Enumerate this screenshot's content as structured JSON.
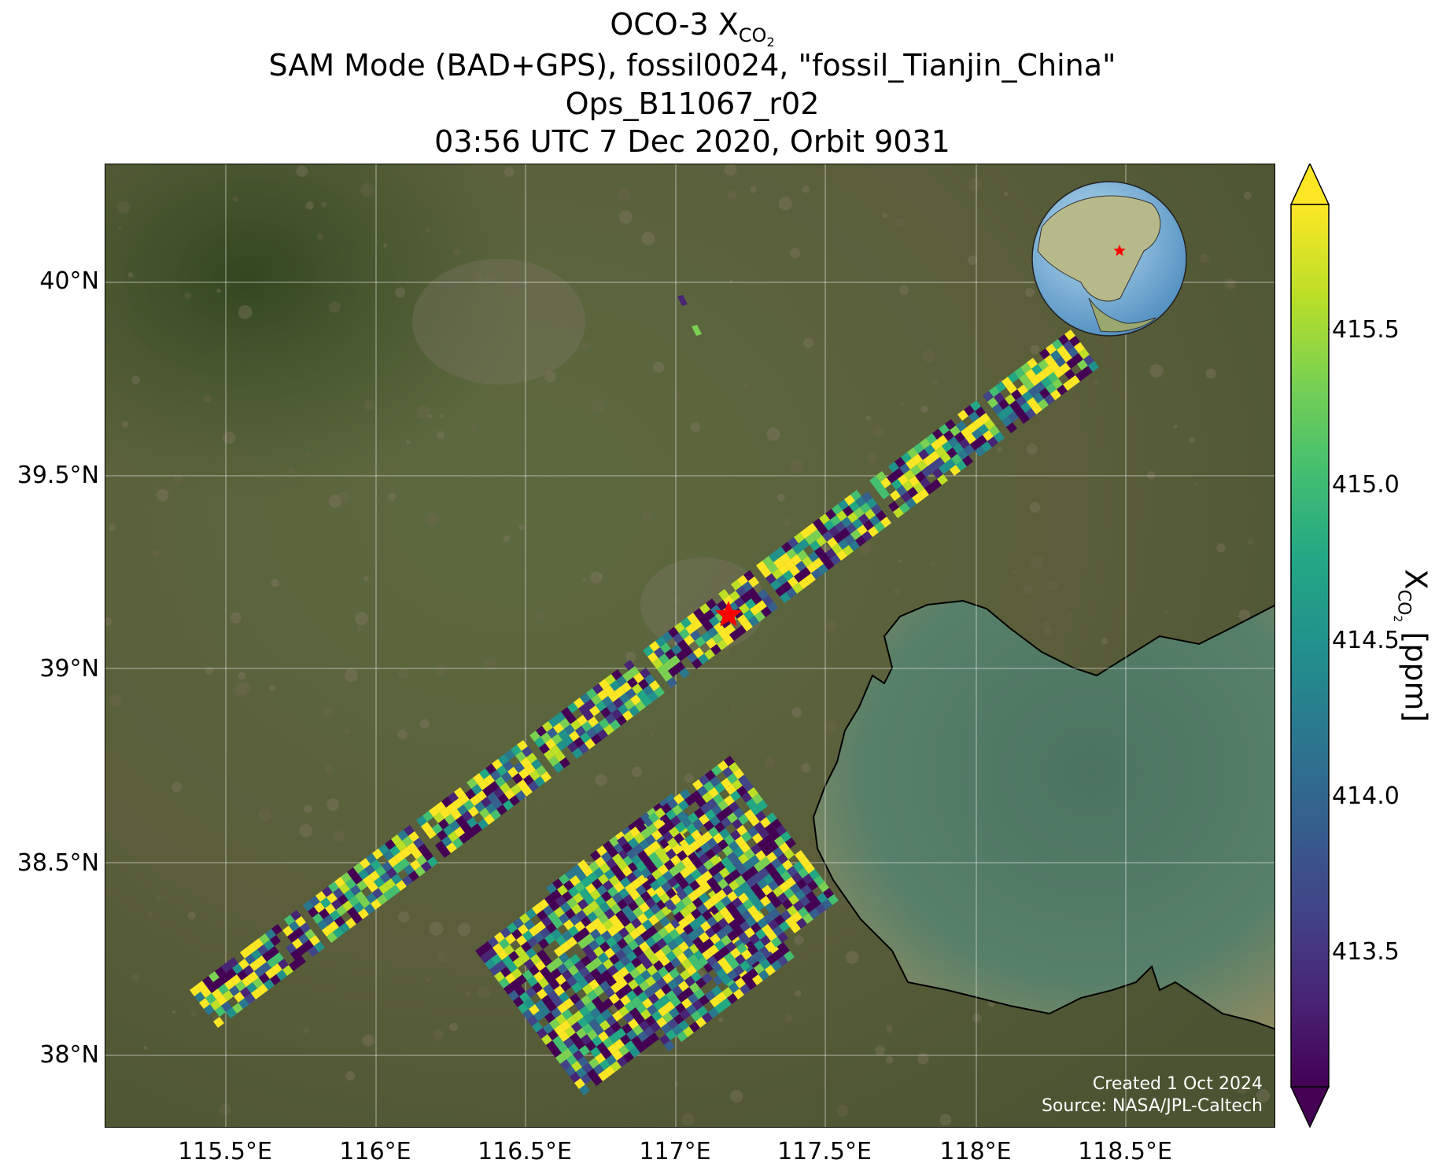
{
  "title": {
    "line1_main": "OCO-3 X",
    "line1_sub": "CO",
    "line1_sub2": "2",
    "line2": "SAM Mode (BAD+GPS), fossil0024, \"fossil_Tianjin_China\"",
    "line3": "Ops_B11067_r02",
    "line4": "03:56 UTC 7 Dec 2020, Orbit 9031"
  },
  "axes": {
    "lon_ticks": [
      "115.5°E",
      "116°E",
      "116.5°E",
      "117°E",
      "117.5°E",
      "118°E",
      "118.5°E"
    ],
    "lat_ticks": [
      "40°N",
      "39.5°N",
      "39°N",
      "38.5°N",
      "38°N"
    ]
  },
  "colorbar": {
    "label_main": "X",
    "label_sub": "CO",
    "label_sub2": "2",
    "label_unit": " [ppm]",
    "ticks": [
      "415.5",
      "415.0",
      "414.5",
      "414.0",
      "413.5"
    ],
    "extend": "both",
    "colormap": "viridis"
  },
  "credits": {
    "created": "Created 1 Oct 2024",
    "source": "Source: NASA/JPL-Caltech"
  },
  "target_marker": {
    "label": "fossil_Tianjin_China",
    "color": "#ff0000",
    "icon": "star-icon"
  },
  "inset": {
    "icon": "globe-icon",
    "marker_color": "#ff0000"
  },
  "colors": {
    "land": "#56613a",
    "water": "#4f7a60",
    "coast": "#000000",
    "marker": "#ff0000"
  }
}
